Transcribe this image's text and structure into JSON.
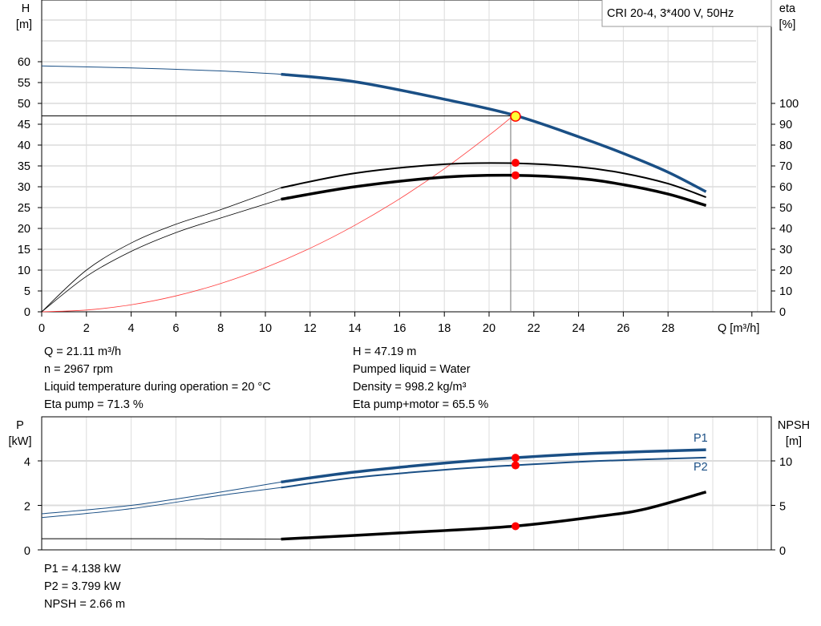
{
  "chart_data": [
    {
      "type": "line",
      "legend_box": "CRI 20-4, 3*400 V, 50Hz",
      "xlabel": "Q [m³/h]",
      "ylabel_left": [
        "H",
        "[m]"
      ],
      "ylabel_right": [
        "eta",
        "[%]"
      ],
      "xlim": [
        0,
        31
      ],
      "ylim_left": [
        0,
        75
      ],
      "ylim_right": [
        0,
        150
      ],
      "x_ticks": [
        0,
        2,
        4,
        6,
        8,
        10,
        12,
        14,
        16,
        18,
        20,
        22,
        24,
        26,
        28
      ],
      "y_ticks_left": [
        0,
        5,
        10,
        15,
        20,
        25,
        30,
        35,
        40,
        45,
        50,
        55,
        60
      ],
      "y_ticks_right": [
        0,
        10,
        20,
        30,
        40,
        50,
        60,
        70,
        80,
        90,
        100
      ],
      "grid": true,
      "series": [
        {
          "key": "H",
          "axis": "left",
          "color": "#1a4f85",
          "x": [
            0,
            4,
            8,
            10.7,
            14,
            18,
            21.11,
            24,
            26,
            28,
            29.7
          ],
          "y": [
            59,
            58.5,
            57.8,
            57,
            55.2,
            51,
            47.19,
            42,
            38,
            33.5,
            28.8
          ]
        },
        {
          "key": "eta_pump",
          "axis": "right",
          "color": "#000000",
          "x": [
            0,
            2,
            4,
            6,
            8,
            10.7,
            14,
            18,
            21.11,
            24,
            26,
            28,
            29.7
          ],
          "y": [
            0,
            20,
            33,
            42,
            49,
            59.5,
            66.5,
            70.8,
            71.3,
            69.5,
            66.5,
            61.5,
            55
          ]
        },
        {
          "key": "eta_total",
          "axis": "right",
          "color": "#000000",
          "x": [
            0,
            2,
            4,
            6,
            8,
            10.7,
            14,
            18,
            21.11,
            24,
            26,
            28,
            29.7
          ],
          "y": [
            0,
            17,
            29,
            38,
            45,
            54,
            60,
            64.6,
            65.5,
            64,
            61,
            56.5,
            51
          ]
        },
        {
          "key": "system",
          "axis": "left",
          "color": "#ff3b3b",
          "x": [
            0,
            2,
            4,
            6,
            8,
            10,
            12,
            14,
            16,
            18,
            20,
            21.11
          ],
          "y": [
            0,
            0.42,
            1.69,
            3.81,
            6.78,
            10.59,
            15.25,
            20.76,
            27.11,
            34.31,
            42.36,
            47.19
          ]
        }
      ],
      "operating_point": {
        "Q": 21.11,
        "H": 47.19,
        "eta_pump": 71.3,
        "eta_total": 65.5
      }
    },
    {
      "type": "line",
      "ylabel_left": [
        "P",
        "[kW]"
      ],
      "ylabel_right": [
        "NPSH",
        "[m]"
      ],
      "xlim": [
        0,
        31
      ],
      "ylim_left": [
        0,
        6
      ],
      "ylim_right": [
        0,
        15
      ],
      "y_ticks_left": [
        0,
        2,
        4
      ],
      "y_ticks_right": [
        0,
        5,
        10
      ],
      "grid": true,
      "series": [
        {
          "name": "P1",
          "axis": "left",
          "color": "#1a4f85",
          "x": [
            0,
            4,
            8,
            10.7,
            14,
            18,
            21.11,
            25,
            29.7
          ],
          "y": [
            1.62,
            2.0,
            2.6,
            3.05,
            3.5,
            3.9,
            4.138,
            4.35,
            4.5
          ]
        },
        {
          "name": "P2",
          "axis": "left",
          "color": "#1a4f85",
          "x": [
            0,
            4,
            8,
            10.7,
            14,
            18,
            21.11,
            25,
            29.7
          ],
          "y": [
            1.45,
            1.85,
            2.45,
            2.8,
            3.25,
            3.6,
            3.799,
            4.0,
            4.15
          ]
        },
        {
          "key": "NPSH",
          "axis": "right",
          "color": "#000000",
          "x": [
            0,
            5,
            10.7,
            16,
            21.11,
            25,
            27,
            29.7
          ],
          "y": [
            1.25,
            1.25,
            1.2,
            1.9,
            2.66,
            3.8,
            4.6,
            6.5
          ]
        }
      ],
      "operating_point": {
        "Q": 21.11,
        "P1": 4.138,
        "P2": 3.799,
        "NPSH": 2.66
      }
    }
  ],
  "info_top_left": [
    "Q = 21.11 m³/h",
    "n = 2967 rpm",
    "Liquid temperature during operation = 20 °C",
    "Eta pump = 71.3 %"
  ],
  "info_top_right": [
    "H = 47.19 m",
    "Pumped liquid = Water",
    "Density = 998.2 kg/m³",
    "Eta pump+motor = 65.5 %"
  ],
  "info_bottom": [
    "P1 = 4.138 kW",
    "P2 = 3.799 kW",
    "NPSH = 2.66 m"
  ]
}
